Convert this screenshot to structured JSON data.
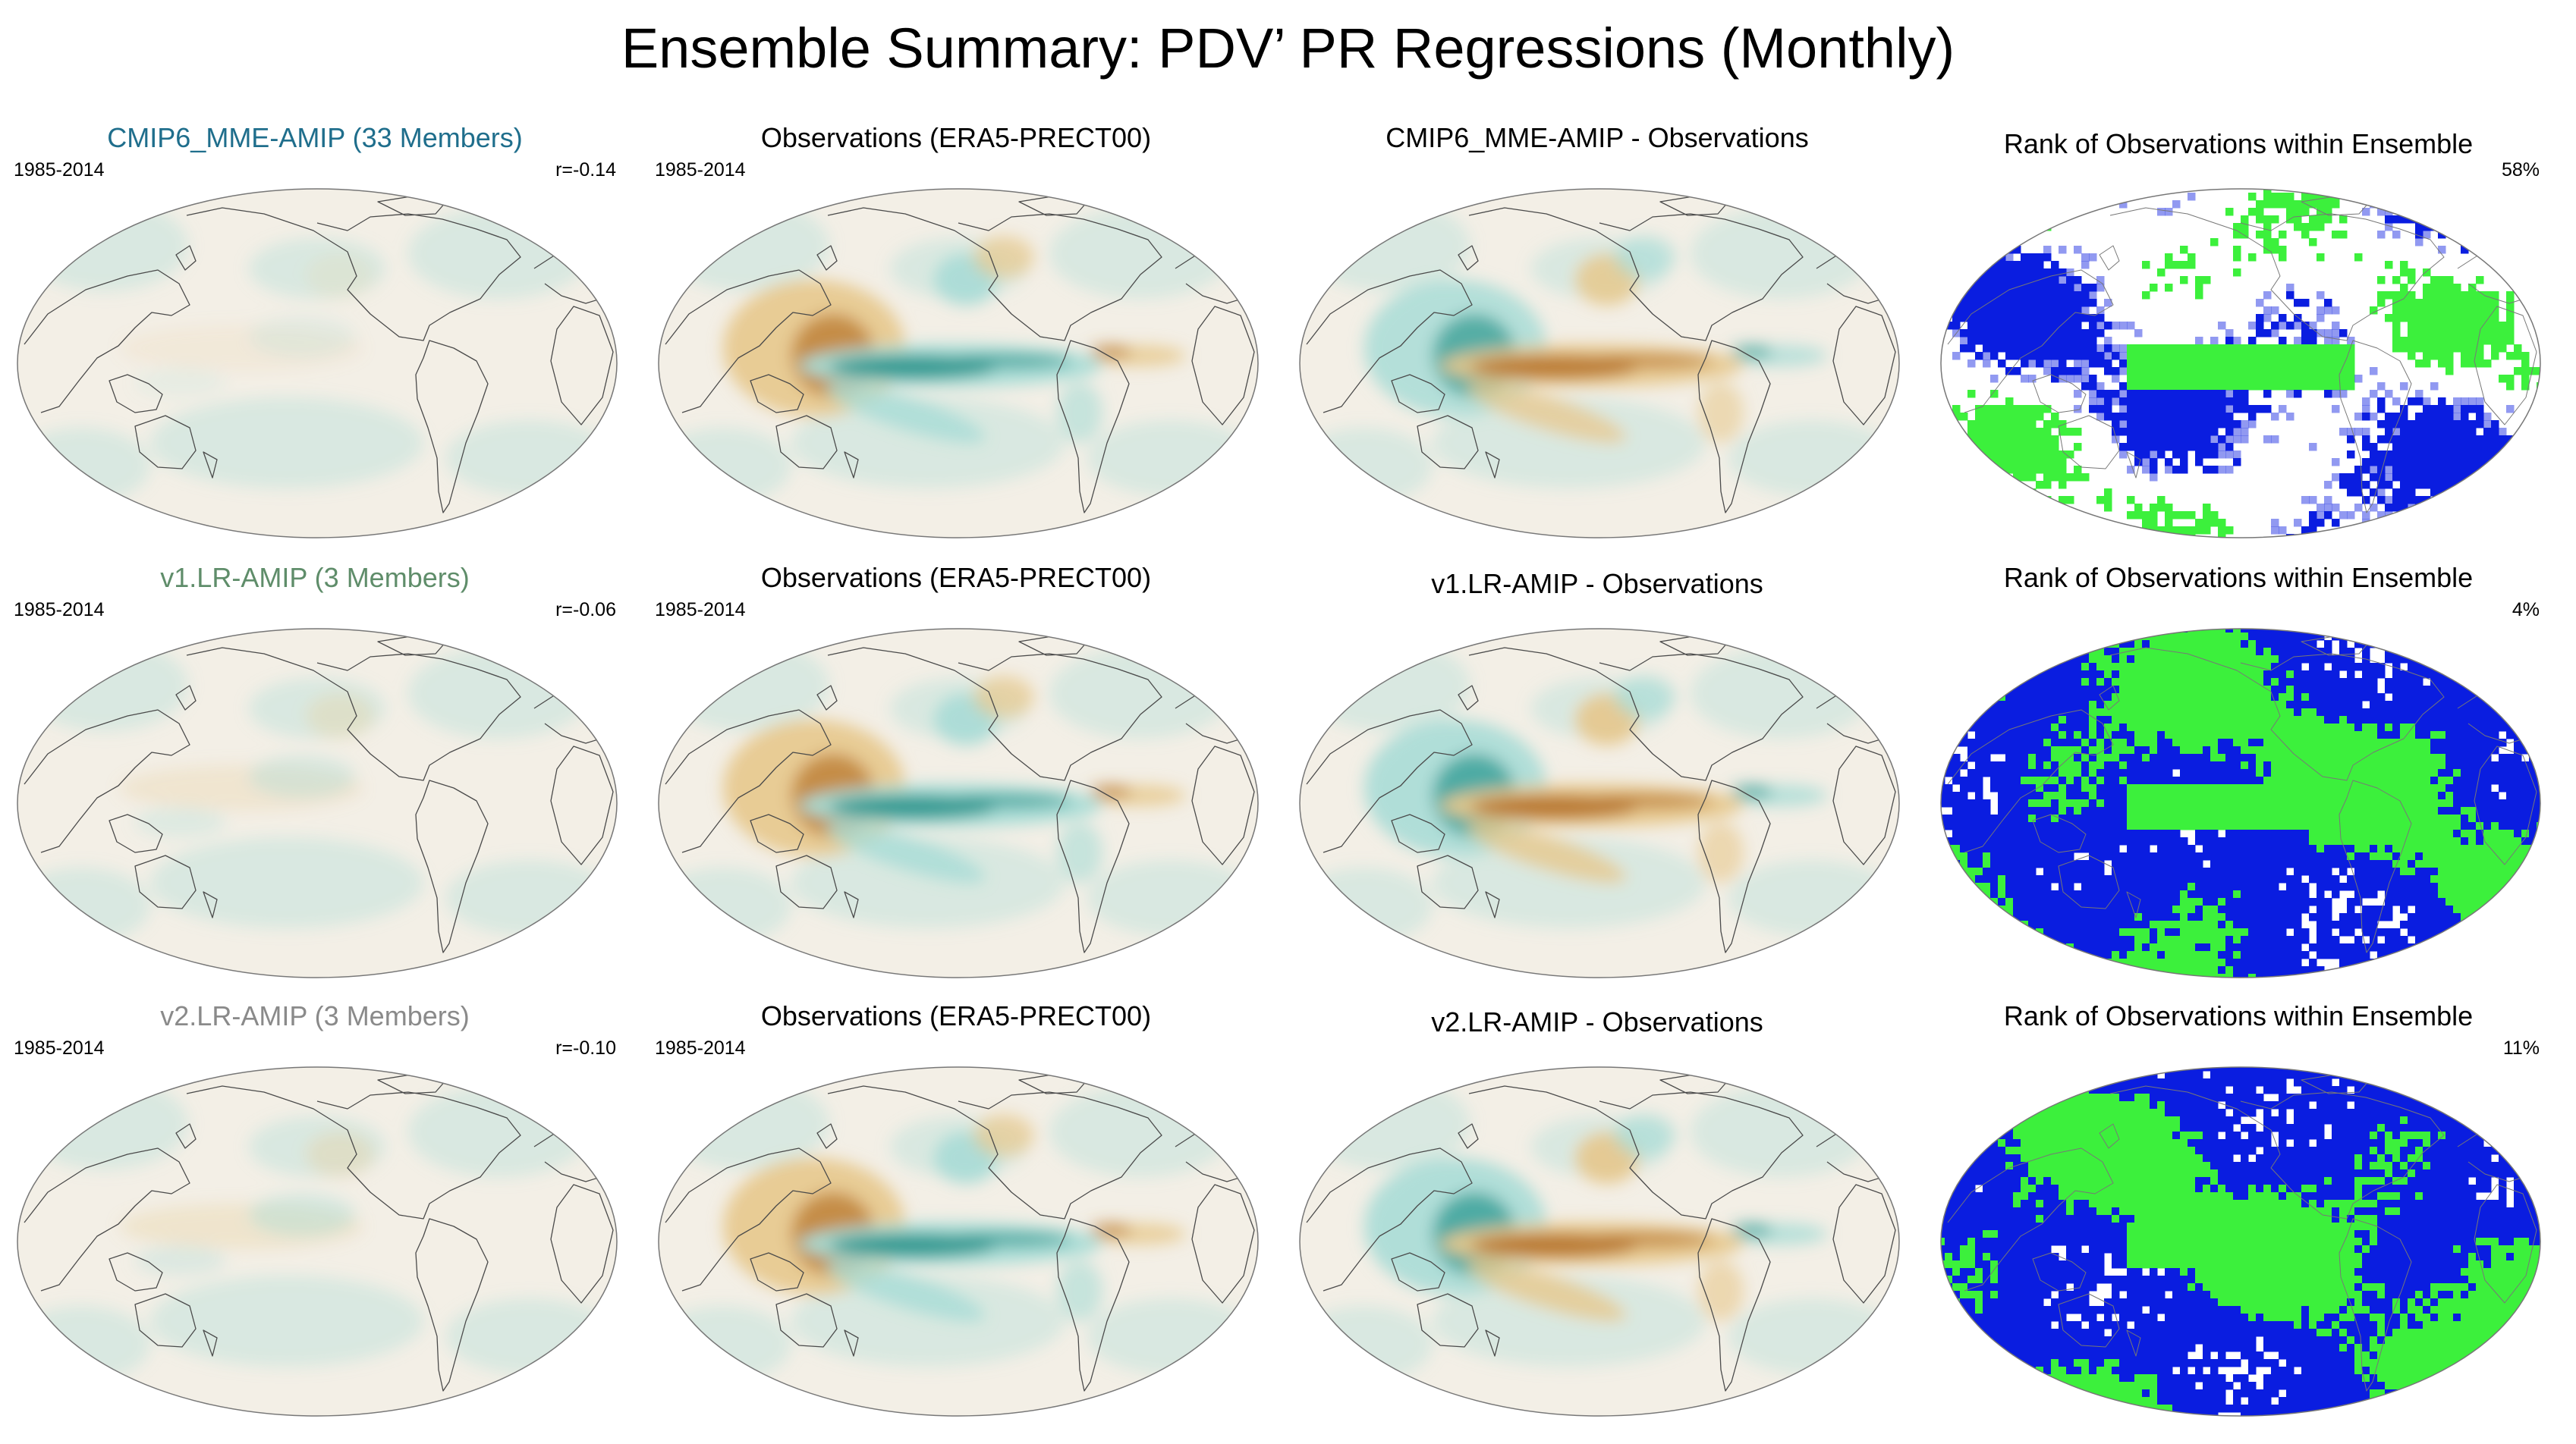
{
  "figure_title": "Ensemble Summary: PDV’ PR Regressions (Monthly)",
  "rows": [
    {
      "model": {
        "title": "CMIP6_MME-AMIP (33 Members)",
        "title_color": "#1f6e8c",
        "years": "1985-2014",
        "correlation": "r=-0.14",
        "intensity": 0.25
      },
      "observations": {
        "title": "Observations (ERA5-PRECT00)",
        "years": "1985-2014",
        "intensity": 1.0
      },
      "difference": {
        "title": "CMIP6_MME-AMIP - Observations",
        "intensity": 0.95
      },
      "rank": {
        "title": "Rank of Observations within Ensemble",
        "percent": "58%",
        "variant": "mme"
      }
    },
    {
      "model": {
        "title": "v1.LR-AMIP (3 Members)",
        "title_color": "#5f8d6a",
        "years": "1985-2014",
        "correlation": "r=-0.06",
        "intensity": 0.45
      },
      "observations": {
        "title": "Observations (ERA5-PRECT00)",
        "years": "1985-2014",
        "intensity": 1.0
      },
      "difference": {
        "title": "v1.LR-AMIP - Observations",
        "intensity": 1.0
      },
      "rank": {
        "title": "Rank of Observations within Ensemble",
        "percent": "4%",
        "variant": "full"
      }
    },
    {
      "model": {
        "title": "v2.LR-AMIP (3 Members)",
        "title_color": "#8a8a8a",
        "years": "1985-2014",
        "correlation": "r=-0.10",
        "intensity": 0.5
      },
      "observations": {
        "title": "Observations (ERA5-PRECT00)",
        "years": "1985-2014",
        "intensity": 1.0
      },
      "difference": {
        "title": "v2.LR-AMIP - Observations",
        "intensity": 1.0
      },
      "rank": {
        "title": "Rank of Observations within Ensemble",
        "percent": "11%",
        "variant": "full"
      }
    }
  ],
  "colors": {
    "ocean_background": "#f3efe6",
    "teal_strong": "#2f9a92",
    "teal_light": "#a8dcd6",
    "brown_strong": "#b9782e",
    "brown_light": "#e7c88c",
    "rank_blue": "#0a1de0",
    "rank_green": "#3cf03c",
    "coast": "#4a4a4a"
  }
}
